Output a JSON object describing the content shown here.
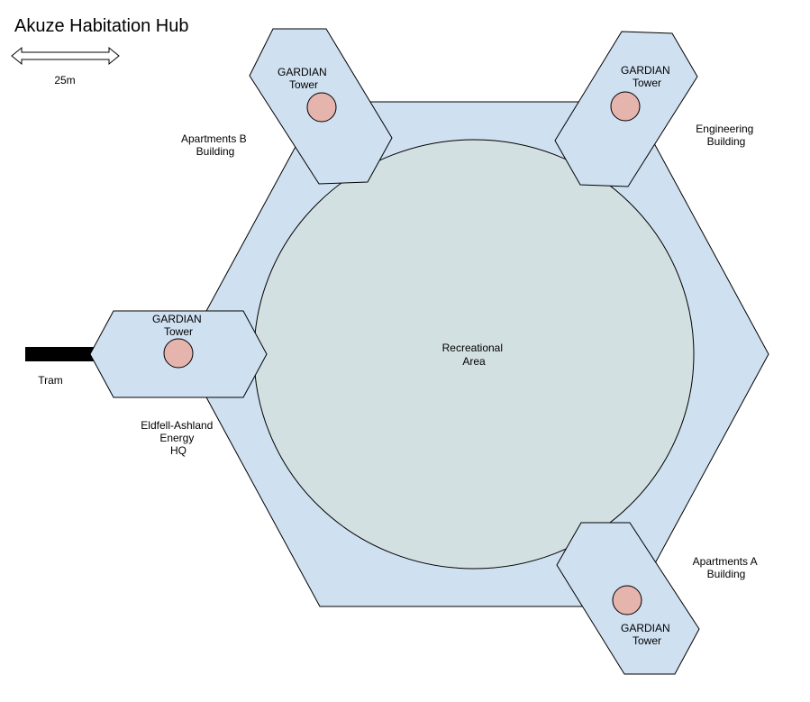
{
  "title": "Akuze Habitation Hub",
  "scale_bar": {
    "label": "25m"
  },
  "colors": {
    "hub_fill": "#cfe0f1",
    "center_fill": "#d3e0e2",
    "tower_dot": "#e5b4ac",
    "tram_line": "#000000",
    "outline": "#000000"
  },
  "center": {
    "line1": "Recreational",
    "line2": "Area"
  },
  "towers": [
    {
      "line1": "GARDIAN",
      "line2": "Tower"
    },
    {
      "line1": "GARDIAN",
      "line2": "Tower"
    },
    {
      "line1": "GARDIAN",
      "line2": "Tower"
    },
    {
      "line1": "GARDIAN",
      "line2": "Tower"
    }
  ],
  "buildings": {
    "apartments_b": {
      "line1": "Apartments B",
      "line2": "Building"
    },
    "engineering": {
      "line1": "Engineering",
      "line2": "Building"
    },
    "eldfell": {
      "line1": "Eldfell-Ashland",
      "line2": "Energy",
      "line3": "HQ"
    },
    "apartments_a": {
      "line1": "Apartments A",
      "line2": "Building"
    }
  },
  "tram": {
    "label": "Tram"
  }
}
